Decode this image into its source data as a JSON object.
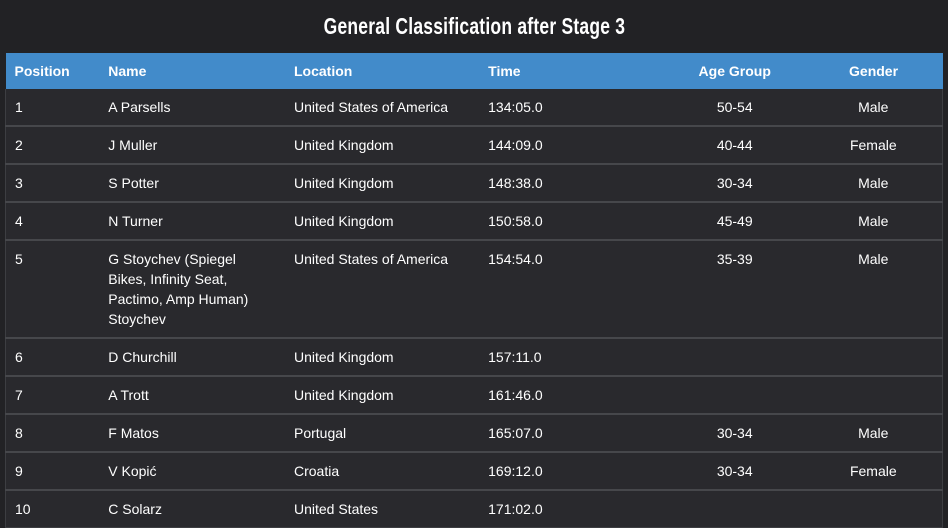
{
  "title": "General Classification after Stage 3",
  "colors": {
    "page_bg": "#222225",
    "row_bg": "#29292d",
    "header_bg": "#428bca",
    "header_text": "#ffffff",
    "row_text": "#ffffff",
    "row_border": "#46474b",
    "table_edge": "#3d3e42"
  },
  "table": {
    "columns": [
      {
        "key": "position",
        "label": "Position",
        "align": "left"
      },
      {
        "key": "name",
        "label": "Name",
        "align": "left"
      },
      {
        "key": "location",
        "label": "Location",
        "align": "left"
      },
      {
        "key": "time",
        "label": "Time",
        "align": "left"
      },
      {
        "key": "age-group",
        "label": "Age Group",
        "align": "center"
      },
      {
        "key": "gender",
        "label": "Gender",
        "align": "center"
      }
    ],
    "rows": [
      [
        "1",
        "A Parsells",
        "United States of America",
        "134:05.0",
        "50-54",
        "Male"
      ],
      [
        "2",
        "J Muller",
        "United Kingdom",
        "144:09.0",
        "40-44",
        "Female"
      ],
      [
        "3",
        "S Potter",
        "United Kingdom",
        "148:38.0",
        "30-34",
        "Male"
      ],
      [
        "4",
        "N Turner",
        "United Kingdom",
        "150:58.0",
        "45-49",
        "Male"
      ],
      [
        "5",
        "G Stoychev (Spiegel Bikes, Infinity Seat, Pactimo, Amp Human) Stoychev",
        "United States of America",
        "154:54.0",
        "35-39",
        "Male"
      ],
      [
        "6",
        "D Churchill",
        "United Kingdom",
        "157:11.0",
        "",
        ""
      ],
      [
        "7",
        "A Trott",
        "United Kingdom",
        "161:46.0",
        "",
        ""
      ],
      [
        "8",
        "F Matos",
        "Portugal",
        "165:07.0",
        "30-34",
        "Male"
      ],
      [
        "9",
        "V Kopić",
        "Croatia",
        "169:12.0",
        "30-34",
        "Female"
      ],
      [
        "10",
        "C Solarz",
        "United States",
        "171:02.0",
        "",
        ""
      ]
    ]
  }
}
